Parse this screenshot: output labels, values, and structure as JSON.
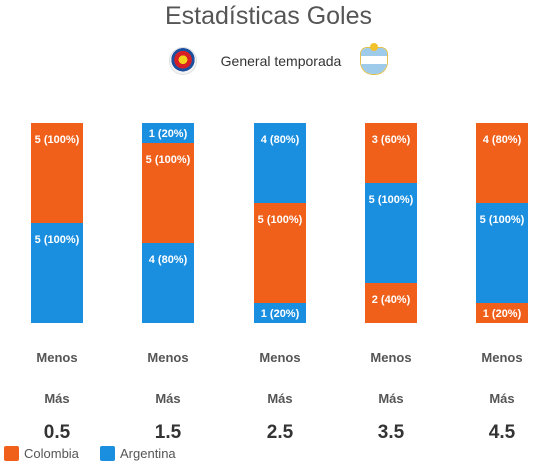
{
  "colors": {
    "colombia": "#f0601a",
    "argentina": "#1a8fe0"
  },
  "icons": {
    "colombia_badge": "colombia-crest-icon",
    "argentina_badge": "argentina-crest-icon"
  },
  "chart_data": {
    "type": "bar",
    "stacked": true,
    "title": "Estadísticas Goles",
    "subtitle": "General temporada",
    "categories": [
      "0.5",
      "1.5",
      "2.5",
      "3.5",
      "4.5"
    ],
    "category_lines": [
      "Menos",
      "Más"
    ],
    "series": [
      {
        "name": "Colombia",
        "color": "#f0601a",
        "segments": [
          {
            "value": 5,
            "label": "5 (100%)",
            "side": "top"
          },
          {
            "value": 5,
            "label": "5 (100%)",
            "side": "bottom"
          },
          {
            "value": 5,
            "label": "5 (100%)",
            "side": "middle"
          },
          {
            "value": 3,
            "label": "3 (60%)",
            "side": "top",
            "extra": {
              "value": 2,
              "label": "2 (40%)",
              "side": "bottom"
            }
          },
          {
            "value": 4,
            "label": "4 (80%)",
            "side": "top",
            "extra": {
              "value": 1,
              "label": "1 (20%)",
              "side": "bottom"
            }
          }
        ]
      },
      {
        "name": "Argentina",
        "color": "#1a8fe0",
        "segments": [
          {
            "value": 5,
            "label": "5 (100%)",
            "side": "bottom"
          },
          {
            "value": 1,
            "label": "1 (20%)",
            "side": "top",
            "extra": {
              "value": 4,
              "label": "4 (80%)",
              "side": "bottom"
            }
          },
          {
            "value": 4,
            "label": "4 (80%)",
            "side": "top",
            "extra": {
              "value": 1,
              "label": "1 (20%)",
              "side": "bottom"
            }
          },
          {
            "value": 5,
            "label": "5 (100%)",
            "side": "middle"
          },
          {
            "value": 5,
            "label": "5 (100%)",
            "side": "middle"
          }
        ]
      }
    ],
    "stacks": [
      [
        {
          "series": "Colombia",
          "value": 5,
          "label": "5 (100%)"
        },
        {
          "series": "Argentina",
          "value": 5,
          "label": "5 (100%)"
        }
      ],
      [
        {
          "series": "Argentina",
          "value": 1,
          "label": "1 (20%)"
        },
        {
          "series": "Colombia",
          "value": 5,
          "label": "5 (100%)"
        },
        {
          "series": "Argentina",
          "value": 4,
          "label": "4 (80%)"
        }
      ],
      [
        {
          "series": "Argentina",
          "value": 4,
          "label": "4 (80%)"
        },
        {
          "series": "Colombia",
          "value": 5,
          "label": "5 (100%)"
        },
        {
          "series": "Argentina",
          "value": 1,
          "label": "1 (20%)"
        }
      ],
      [
        {
          "series": "Colombia",
          "value": 3,
          "label": "3 (60%)"
        },
        {
          "series": "Argentina",
          "value": 5,
          "label": "5 (100%)"
        },
        {
          "series": "Colombia",
          "value": 2,
          "label": "2 (40%)"
        }
      ],
      [
        {
          "series": "Colombia",
          "value": 4,
          "label": "4 (80%)"
        },
        {
          "series": "Argentina",
          "value": 5,
          "label": "5 (100%)"
        },
        {
          "series": "Colombia",
          "value": 1,
          "label": "1 (20%)"
        }
      ]
    ],
    "legend": [
      "Colombia",
      "Argentina"
    ],
    "legend_position": "bottom-left",
    "grid": false
  }
}
